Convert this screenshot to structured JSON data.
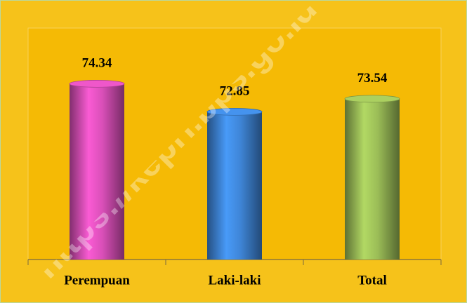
{
  "chart_data": {
    "type": "bar",
    "categories": [
      "Perempuan",
      "Laki-laki",
      "Total"
    ],
    "values": [
      74.34,
      72.85,
      73.54
    ],
    "colors": [
      "#d94fb8",
      "#3f86d8",
      "#9bbd57"
    ],
    "ylim": [
      65,
      77
    ],
    "watermark": "https://kepri.bps.go.id"
  }
}
